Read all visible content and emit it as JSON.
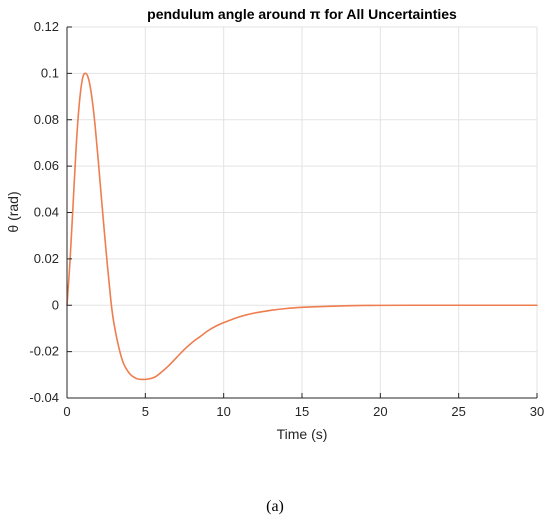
{
  "caption": "(a)",
  "chart_data": {
    "type": "line",
    "title": "pendulum angle around π for All Uncertainties",
    "xlabel": "Time (s)",
    "ylabel": "θ (rad)",
    "xlim": [
      0,
      30
    ],
    "ylim": [
      -0.04,
      0.12
    ],
    "xticks": [
      0,
      5,
      10,
      15,
      20,
      25,
      30
    ],
    "yticks": [
      -0.04,
      -0.02,
      0,
      0.02,
      0.04,
      0.06,
      0.08,
      0.1,
      0.12
    ],
    "xtick_labels": [
      "0",
      "5",
      "10",
      "15",
      "20",
      "25",
      "30"
    ],
    "ytick_labels": [
      "-0.04",
      "-0.02",
      "0",
      "0.02",
      "0.04",
      "0.06",
      "0.08",
      "0.1",
      "0.12"
    ],
    "grid": true,
    "line_color": "#ee7d4f",
    "series": [
      {
        "x": [
          0,
          0.2,
          0.4,
          0.6,
          0.8,
          1.0,
          1.2,
          1.4,
          1.6,
          1.8,
          2.0,
          2.2,
          2.5,
          2.8,
          3.0,
          3.3,
          3.6,
          4.0,
          4.4,
          4.8,
          5.2,
          5.6,
          6.0,
          6.5,
          7.0,
          7.5,
          8.0,
          8.5,
          9.0,
          9.5,
          10.0,
          11.0,
          12.0,
          13.0,
          14.0,
          15.0,
          16.0,
          17.0,
          18.0,
          19.0,
          20.0,
          22.0,
          25.0,
          28.0,
          30.0
        ],
        "y": [
          0,
          0.02,
          0.045,
          0.07,
          0.088,
          0.098,
          0.1,
          0.097,
          0.089,
          0.077,
          0.062,
          0.046,
          0.023,
          0.002,
          -0.008,
          -0.018,
          -0.025,
          -0.0295,
          -0.0315,
          -0.032,
          -0.0318,
          -0.031,
          -0.029,
          -0.026,
          -0.0225,
          -0.019,
          -0.016,
          -0.0135,
          -0.011,
          -0.009,
          -0.0075,
          -0.005,
          -0.0033,
          -0.0022,
          -0.0014,
          -0.0009,
          -0.0006,
          -0.0004,
          -0.0002,
          -0.0001,
          -5e-05,
          0,
          0,
          0,
          0
        ]
      }
    ]
  }
}
